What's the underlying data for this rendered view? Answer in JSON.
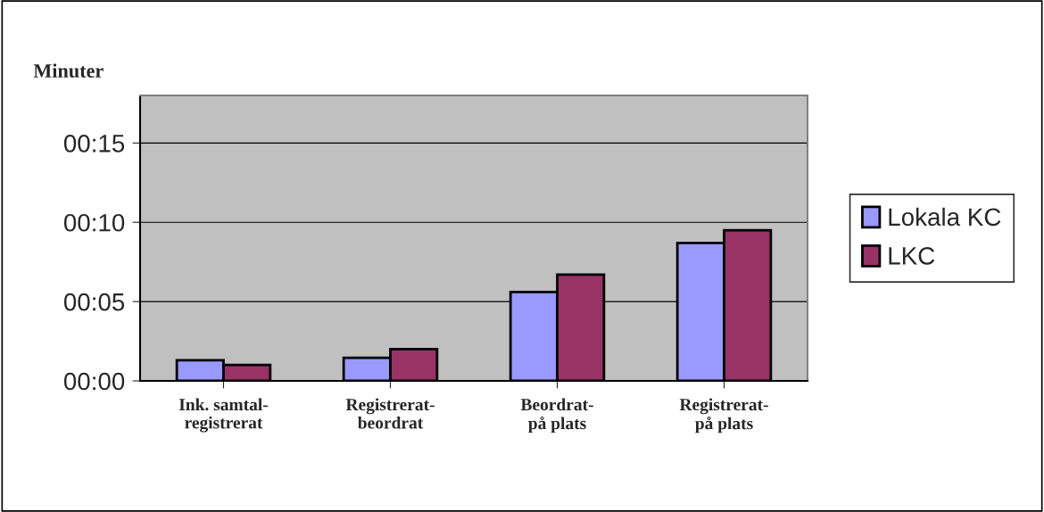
{
  "chart_data": {
    "type": "bar",
    "ylabel": "Minuter",
    "categories": [
      "Ink. samtal-\nregistrerat",
      "Registrerat-\nbeordrat",
      "Beordrat-\npå plats",
      "Registrerat-\npå plats"
    ],
    "series": [
      {
        "name": "Lokala KC",
        "color": "#9999ff",
        "values": [
          1.3,
          1.45,
          5.6,
          8.7
        ]
      },
      {
        "name": "LKC",
        "color": "#993366",
        "values": [
          1.0,
          2.0,
          6.7,
          9.5
        ]
      }
    ],
    "ylim": [
      0,
      18
    ],
    "yticks": [
      {
        "value": 0,
        "label": "00:00"
      },
      {
        "value": 5,
        "label": "00:05"
      },
      {
        "value": 10,
        "label": "00:10"
      },
      {
        "value": 15,
        "label": "00:15"
      }
    ],
    "grid": "y",
    "legend": "right"
  }
}
